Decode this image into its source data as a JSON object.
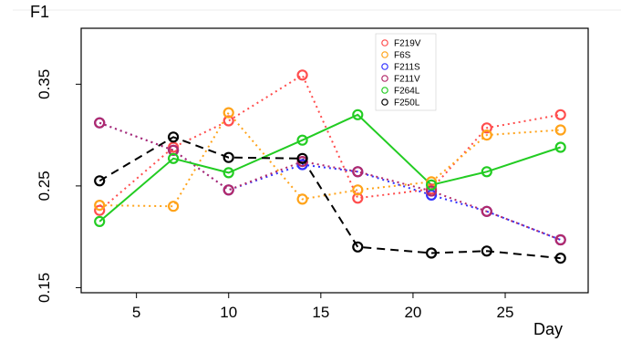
{
  "chart_data": {
    "type": "line",
    "title": "",
    "ylabel": "F1",
    "xlabel": "Day",
    "xlim": [
      2,
      29.5
    ],
    "ylim": [
      0.145,
      0.405
    ],
    "xticks": [
      "5",
      "10",
      "15",
      "20",
      "25"
    ],
    "yticks": [
      "0.15",
      "0.25",
      "0.35"
    ],
    "legend_position": "top-right",
    "grid": false,
    "series": [
      {
        "name": "F219V",
        "color": "#ff4d4d",
        "style": "dotted",
        "points": [
          [
            3,
            0.226
          ],
          [
            7,
            0.288
          ],
          [
            10,
            0.314
          ],
          [
            14,
            0.359
          ],
          [
            17,
            0.238
          ],
          [
            21,
            0.247
          ],
          [
            24,
            0.307
          ],
          [
            28,
            0.32
          ]
        ]
      },
      {
        "name": "F6S",
        "color": "#ffa31a",
        "style": "dotted",
        "points": [
          [
            3,
            0.231
          ],
          [
            7,
            0.23
          ],
          [
            10,
            0.322
          ],
          [
            14,
            0.237
          ],
          [
            17,
            0.246
          ],
          [
            21,
            0.254
          ],
          [
            24,
            0.3
          ],
          [
            28,
            0.305
          ]
        ]
      },
      {
        "name": "F211S",
        "color": "#3333ff",
        "style": "dotted",
        "points": [
          [
            3,
            0.312
          ],
          [
            7,
            0.285
          ],
          [
            10,
            0.246
          ],
          [
            14,
            0.271
          ],
          [
            17,
            0.264
          ],
          [
            21,
            0.241
          ],
          [
            24,
            0.225
          ],
          [
            28,
            0.197
          ]
        ]
      },
      {
        "name": "F211V",
        "color": "#b22a6a",
        "style": "dotted",
        "points": [
          [
            3,
            0.312
          ],
          [
            7,
            0.285
          ],
          [
            10,
            0.246
          ],
          [
            14,
            0.274
          ],
          [
            17,
            0.264
          ],
          [
            21,
            0.245
          ],
          [
            24,
            0.225
          ],
          [
            28,
            0.197
          ]
        ]
      },
      {
        "name": "F264L",
        "color": "#22cc22",
        "style": "solid",
        "points": [
          [
            3,
            0.215
          ],
          [
            7,
            0.277
          ],
          [
            10,
            0.263
          ],
          [
            14,
            0.295
          ],
          [
            17,
            0.32
          ],
          [
            21,
            0.251
          ],
          [
            24,
            0.264
          ],
          [
            28,
            0.288
          ]
        ]
      },
      {
        "name": "F250L",
        "color": "#000000",
        "style": "dashed",
        "points": [
          [
            3,
            0.255
          ],
          [
            7,
            0.298
          ],
          [
            10,
            0.278
          ],
          [
            14,
            0.277
          ],
          [
            17,
            0.19
          ],
          [
            21,
            0.184
          ],
          [
            24,
            0.186
          ],
          [
            28,
            0.179
          ]
        ]
      }
    ]
  }
}
